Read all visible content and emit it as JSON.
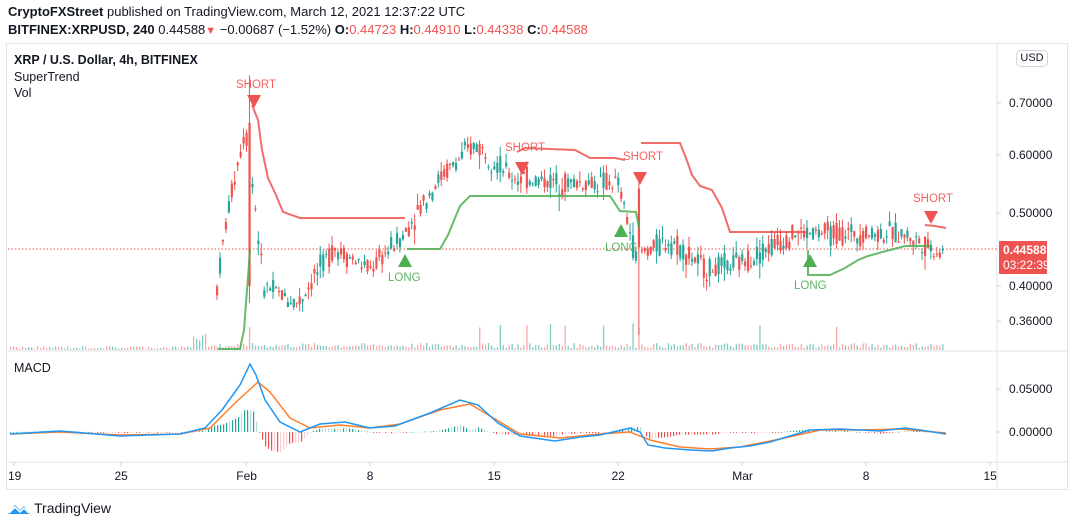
{
  "header": {
    "publisher": "CryptoFXStreet",
    "published_text": "published on TradingView.com, March 12, 2021 12:37:22 UTC",
    "symbol": "BITFINEX:XRPUSD, 240",
    "last": "0.44588",
    "change_arrow": "▼",
    "change": "−0.00687 (−1.52%)",
    "o_label": "O:",
    "o": "0.44723",
    "h_label": "H:",
    "h": "0.44910",
    "l_label": "L:",
    "l": "0.44338",
    "c_label": "C:",
    "c": "0.44588"
  },
  "legend": {
    "title": "XRP / U.S. Dollar, 4h, BITFINEX",
    "indicator1": "SuperTrend",
    "indicator2": "Vol"
  },
  "macd_label": "MACD",
  "price_axis": {
    "currency_button": "USD",
    "ticks": [
      "0.70000",
      "0.60000",
      "0.50000",
      "0.40000",
      "0.36000"
    ],
    "current_price": "0.44588",
    "countdown": "03:22:39"
  },
  "macd_axis": {
    "ticks": [
      "0.05000",
      "0.00000"
    ]
  },
  "time_axis": {
    "ticks": [
      "19",
      "25",
      "Feb",
      "8",
      "15",
      "22",
      "Mar",
      "8",
      "15"
    ]
  },
  "footer": {
    "brand": "TradingView"
  },
  "colors": {
    "up": "#26a69a",
    "down": "#ef5350",
    "supertrend_up": "#4caf50",
    "supertrend_down": "#ef5350",
    "macd": "#2196f3",
    "signal": "#ff7f2a",
    "grid": "#e0e3eb",
    "text": "#131722"
  },
  "chart_data": [
    {
      "type": "candlestick",
      "title": "XRP / U.S. Dollar, 4h, BITFINEX",
      "xlabel": "",
      "ylabel": "USD",
      "ylim": [
        0.33,
        0.75
      ],
      "x_ticks": [
        "19",
        "25",
        "Feb",
        "8",
        "15",
        "22",
        "Mar",
        "8",
        "15"
      ],
      "y_ticks": [
        0.36,
        0.4,
        0.5,
        0.6,
        0.7
      ],
      "last_price": 0.44588,
      "close_path": [
        {
          "date": "Jan 30",
          "price": 0.33
        },
        {
          "date": "Jan 31",
          "price": 0.5
        },
        {
          "date": "Feb 1",
          "price": 0.65
        },
        {
          "date": "Feb 2",
          "price": 0.4
        },
        {
          "date": "Feb 4",
          "price": 0.38
        },
        {
          "date": "Feb 6",
          "price": 0.45
        },
        {
          "date": "Feb 8",
          "price": 0.42
        },
        {
          "date": "Feb 10",
          "price": 0.47
        },
        {
          "date": "Feb 12",
          "price": 0.56
        },
        {
          "date": "Feb 14",
          "price": 0.62
        },
        {
          "date": "Feb 16",
          "price": 0.56
        },
        {
          "date": "Feb 19",
          "price": 0.55
        },
        {
          "date": "Feb 22",
          "price": 0.55
        },
        {
          "date": "Feb 23",
          "price": 0.44
        },
        {
          "date": "Feb 25",
          "price": 0.46
        },
        {
          "date": "Feb 27",
          "price": 0.42
        },
        {
          "date": "Mar 1",
          "price": 0.43
        },
        {
          "date": "Mar 4",
          "price": 0.47
        },
        {
          "date": "Mar 7",
          "price": 0.47
        },
        {
          "date": "Mar 10",
          "price": 0.47
        },
        {
          "date": "Mar 12",
          "price": 0.446
        }
      ],
      "supertrend": {
        "signals": [
          {
            "label": "SHORT",
            "date": "Feb 1",
            "price": 0.68,
            "direction": "down"
          },
          {
            "label": "LONG",
            "date": "Feb 10",
            "price": 0.43,
            "direction": "up"
          },
          {
            "label": "SHORT",
            "date": "Feb 17",
            "price": 0.56,
            "direction": "down"
          },
          {
            "label": "LONG",
            "date": "Feb 22",
            "price": 0.48,
            "direction": "up"
          },
          {
            "label": "SHORT",
            "date": "Feb 23",
            "price": 0.55,
            "direction": "down"
          },
          {
            "label": "LONG",
            "date": "Mar 5",
            "price": 0.45,
            "direction": "up"
          },
          {
            "label": "SHORT",
            "date": "Mar 11",
            "price": 0.48,
            "direction": "down"
          }
        ]
      }
    },
    {
      "type": "line",
      "title": "MACD",
      "ylim": [
        -0.03,
        0.08
      ],
      "y_ticks": [
        0.0,
        0.05
      ],
      "series": [
        {
          "name": "MACD",
          "color": "#2196f3",
          "peak": 0.08,
          "peak_date": "Feb 1"
        },
        {
          "name": "Signal",
          "color": "#ff7f2a",
          "peak": 0.06,
          "peak_date": "Feb 2"
        }
      ],
      "histogram": true
    }
  ]
}
